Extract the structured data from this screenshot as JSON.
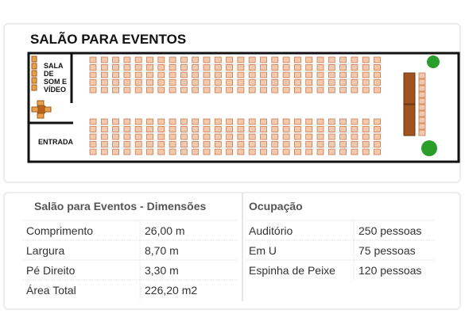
{
  "floor_plan": {
    "title": "SALÃO PARA EVENTOS",
    "sound_room": [
      "SALA",
      "DE",
      "SOM E",
      "VÍDEO"
    ],
    "entrance": "ENTRADA"
  },
  "dimensions": {
    "title": "Salão para Eventos - Dimensões",
    "rows": [
      [
        "Comprimento",
        "26,00 m"
      ],
      [
        "Largura",
        "8,70 m"
      ],
      [
        "Pé Direito",
        "3,30 m"
      ],
      [
        "Área Total",
        "226,20 m2"
      ]
    ]
  },
  "occupancy": {
    "title": "Ocupação",
    "rows": [
      [
        "Auditório",
        "250 pessoas"
      ],
      [
        "Em U",
        "75 pessoas"
      ],
      [
        "Espinha de Peixe",
        "120 pessoas"
      ]
    ]
  }
}
